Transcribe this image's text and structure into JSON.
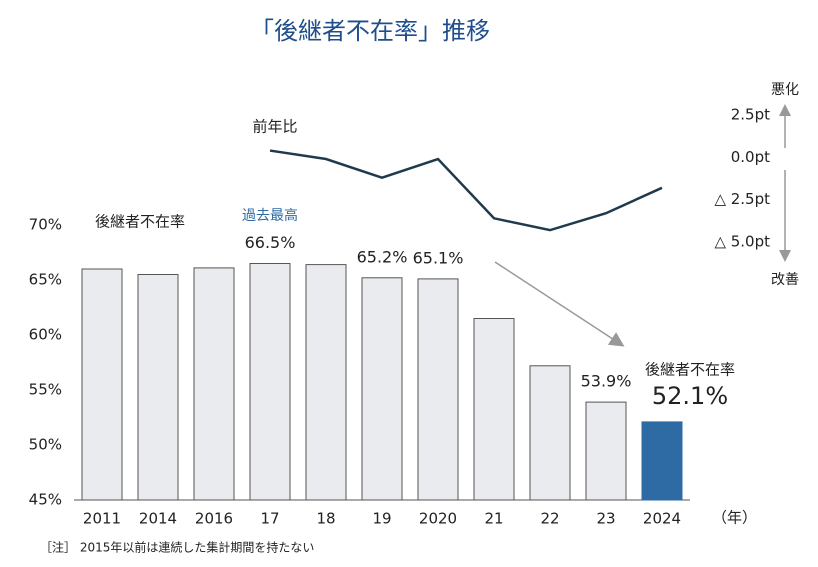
{
  "chart_data": {
    "type": "bar",
    "title": "「後継者不在率」推移",
    "categories": [
      "2011",
      "2014",
      "2016",
      "17",
      "18",
      "19",
      "2020",
      "21",
      "22",
      "23",
      "2024"
    ],
    "series": [
      {
        "name": "後継者不在率",
        "type": "bar",
        "color": "#e9ebee",
        "highlight_color": "#2e6aa4",
        "values": [
          66.0,
          65.5,
          66.1,
          66.5,
          66.4,
          65.2,
          65.1,
          61.5,
          57.2,
          53.9,
          52.1
        ],
        "value_labels": [
          null,
          null,
          null,
          "66.5%",
          null,
          "65.2%",
          "65.1%",
          null,
          null,
          "53.9%",
          "52.1%"
        ]
      },
      {
        "name": "前年比",
        "type": "line",
        "axis": "y2",
        "color": "#1f3a4d",
        "values": [
          null,
          null,
          null,
          0.4,
          -0.1,
          -1.2,
          -0.1,
          -3.6,
          -4.3,
          -3.3,
          -1.8
        ]
      }
    ],
    "ylim": [
      45,
      70
    ],
    "yticks": [
      {
        "value": 45,
        "label": "45%"
      },
      {
        "value": 50,
        "label": "50%"
      },
      {
        "value": 55,
        "label": "55%"
      },
      {
        "value": 60,
        "label": "60%"
      },
      {
        "value": 65,
        "label": "65%"
      },
      {
        "value": 70,
        "label": "70%"
      }
    ],
    "y2lim": [
      -5,
      2.5
    ],
    "y2ticks": [
      {
        "value": 2.5,
        "label": "2.5pt"
      },
      {
        "value": 0,
        "label": "0.0pt"
      },
      {
        "value": -2.5,
        "label": "△ 2.5pt"
      },
      {
        "value": -5,
        "label": "△ 5.0pt"
      }
    ],
    "annotations": {
      "record": "過去最高",
      "bar_series_label": "後継者不在率",
      "latest_label": "後継者不在率",
      "worse": "悪化",
      "better": "改善",
      "year_unit": "（年）",
      "note": "［注］ 2015年以前は連続した集計期間を持たない"
    }
  }
}
